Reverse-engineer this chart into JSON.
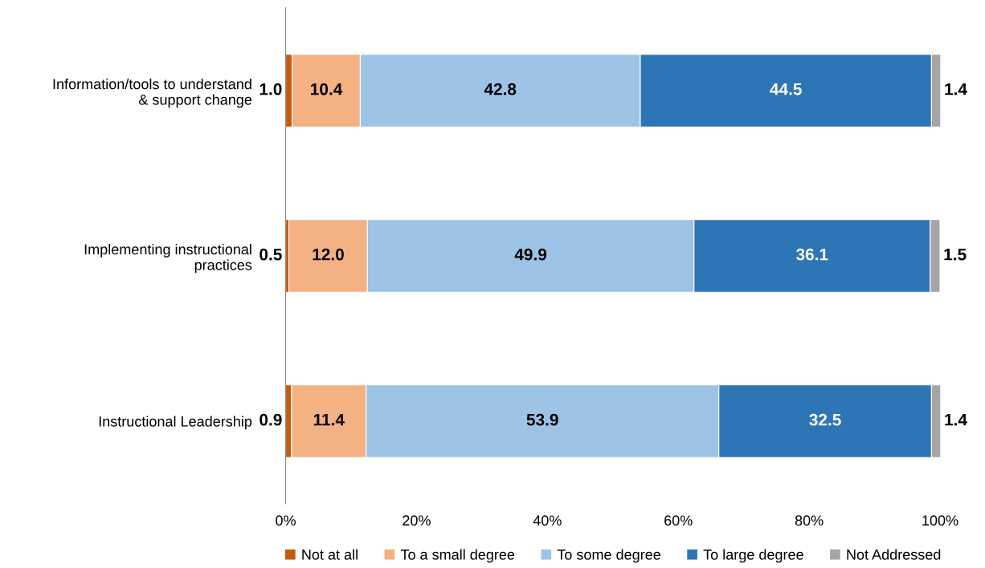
{
  "chart_data": {
    "type": "bar",
    "orientation": "horizontal",
    "stacked": true,
    "categories": [
      "Information/tools to understand\n& support change",
      "Implementing instructional\npractices",
      "Instructional Leadership"
    ],
    "series": [
      {
        "name": "Not at all",
        "color": "#c55a11",
        "values": [
          1.0,
          0.5,
          0.9
        ],
        "value_labels": [
          "1.0",
          "0.5",
          "0.9"
        ]
      },
      {
        "name": "To a small degree",
        "color": "#f4b183",
        "values": [
          10.4,
          12.0,
          11.4
        ],
        "value_labels": [
          "10.4",
          "12.0",
          "11.4"
        ]
      },
      {
        "name": "To some degree",
        "color": "#9dc3e6",
        "values": [
          42.8,
          49.9,
          53.9
        ],
        "value_labels": [
          "42.8",
          "49.9",
          "53.9"
        ]
      },
      {
        "name": "To large degree",
        "color": "#2e75b6",
        "values": [
          44.5,
          36.1,
          32.5
        ],
        "value_labels": [
          "44.5",
          "36.1",
          "32.5"
        ]
      },
      {
        "name": "Not Addressed",
        "color": "#a5a5a5",
        "values": [
          1.4,
          1.5,
          1.4
        ],
        "value_labels": [
          "1.4",
          "1.5",
          "1.4"
        ]
      }
    ],
    "xlim": [
      0,
      100.1
    ],
    "xticks": [
      {
        "value": 0,
        "label": "0%"
      },
      {
        "value": 20,
        "label": "20%"
      },
      {
        "value": 40,
        "label": "40%"
      },
      {
        "value": 60,
        "label": "60%"
      },
      {
        "value": 80,
        "label": "80%"
      },
      {
        "value": 100,
        "label": "100%"
      }
    ],
    "grid": false,
    "legend": "bottom"
  }
}
